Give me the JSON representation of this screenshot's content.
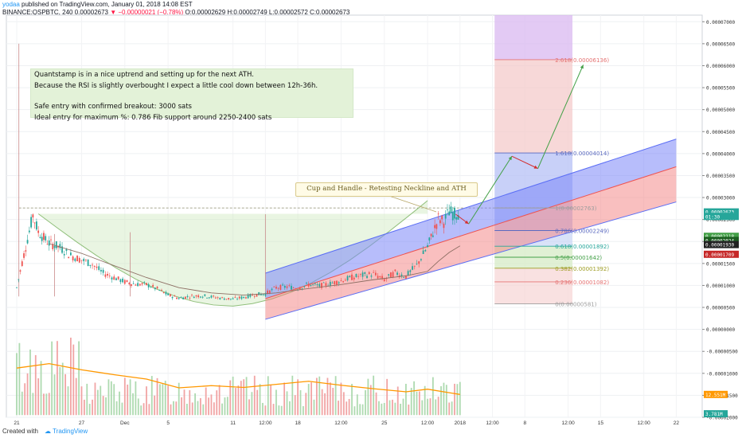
{
  "header": {
    "author": "yodaa",
    "published": "published on TradingView.com, January 01, 2018 14:08 EST",
    "ticker": "BINANCE:QSPBTC, 240",
    "last": "0.00002673",
    "change": "▼ −0.00000021 (−0.78%)",
    "ohlc": "O:0.00002629 H:0.00002749 L:0.00002572 C:0.00002673"
  },
  "notes": {
    "line1": "Quantstamp is in a nice uptrend and setting up for the next ATH.",
    "line2": "Because the RSI is slightly overbought I expect a little cool down between 12h-36h.",
    "line3": "Safe entry with confirmed breakout: 3000 sats",
    "line4": "Ideal entry for maximum %: 0.786 Fib support around 2250-2400 sats"
  },
  "callout": "Cup and Handle - Retesting Neckline and ATH",
  "footer": {
    "created_with": "Created with",
    "brand": "TradingView"
  },
  "colors": {
    "up": "#26a69a",
    "down": "#ef5350",
    "ma": "#ff9800",
    "channel_blue": "#5b6ef5",
    "channel_red": "#ef5350",
    "cup": "#cfe8bf",
    "arrow_green": "#43a047",
    "arrow_red": "#d32f2f"
  },
  "chart_data": {
    "type": "line",
    "symbol": "BINANCE:QSPBTC",
    "interval": "240",
    "y_axis": {
      "ticks": [
        "0.00007000",
        "0.00006500",
        "0.00006000",
        "0.00005500",
        "0.00005000",
        "0.00004500",
        "0.00004000",
        "0.00003500",
        "0.00003000",
        "0.00002500",
        "0.00002000",
        "0.00001500",
        "0.00001000",
        "0.00000500",
        "0.00000000",
        "-0.00000500",
        "-0.00001000",
        "-0.00001500",
        "-0.00002000"
      ],
      "values": [
        7e-05,
        6.5e-05,
        6e-05,
        5.5e-05,
        5e-05,
        4.5e-05,
        4e-05,
        3.5e-05,
        3e-05,
        2.5e-05,
        2e-05,
        1.5e-05,
        1e-05,
        5e-06,
        0,
        -5e-06,
        -1e-05,
        -1.5e-05,
        -2e-05
      ],
      "range": [
        -2e-05,
        7.15e-05
      ]
    },
    "x_axis": {
      "ticks": [
        "21",
        "27",
        "Dec",
        "5",
        "11",
        "12:00",
        "18",
        "12:00",
        "25",
        "12:00",
        "2018",
        "12:00",
        "8",
        "12:00",
        "15",
        "12:00",
        "22"
      ],
      "positions_days": [
        0,
        6,
        10,
        14,
        20,
        23,
        26,
        30,
        34,
        38,
        41,
        44,
        47,
        51,
        54,
        58,
        61
      ]
    },
    "price_labels": [
      {
        "text": "0.00002673",
        "value": 2.673e-05,
        "color": "#26a69a"
      },
      {
        "text": "01:30",
        "value": 2.57e-05,
        "color": "#26a69a"
      },
      {
        "text": "0.00002118",
        "value": 2.118e-05,
        "color": "#43a047"
      },
      {
        "text": "0.00002024",
        "value": 2.024e-05,
        "color": "#1b5e20"
      },
      {
        "text": "0.00001930",
        "value": 1.93e-05,
        "color": "#212121"
      },
      {
        "text": "0.00001709",
        "value": 1.709e-05,
        "color": "#c62828"
      }
    ],
    "fibonacci": [
      {
        "level": "2.618",
        "text": "2.618(0.00006136)",
        "value": 6.136e-05,
        "color": "#e57373"
      },
      {
        "level": "1.618",
        "text": "1.618(0.00004014)",
        "value": 4.014e-05,
        "color": "#5c6bc0"
      },
      {
        "level": "1",
        "text": "1(0.00002763)",
        "value": 2.763e-05,
        "color": "#9e9e9e"
      },
      {
        "level": "0.786",
        "text": "0.786(0.00002249)",
        "value": 2.249e-05,
        "color": "#5c6bc0"
      },
      {
        "level": "0.618",
        "text": "0.618(0.00001892)",
        "value": 1.892e-05,
        "color": "#26a69a"
      },
      {
        "level": "0.5",
        "text": "0.5(0.00001642)",
        "value": 1.642e-05,
        "color": "#43a047"
      },
      {
        "level": "0.382",
        "text": "0.382(0.00001392)",
        "value": 1.392e-05,
        "color": "#9e9d24"
      },
      {
        "level": "0.236",
        "text": "0.236(0.00001082)",
        "value": 1.082e-05,
        "color": "#e57373"
      },
      {
        "level": "0",
        "text": "0(0.00000581)",
        "value": 5.81e-06,
        "color": "#9e9e9e"
      }
    ],
    "price_series": {
      "name": "QSPBTC",
      "x_days": [
        0,
        0.5,
        1,
        1.5,
        2,
        2.5,
        3,
        3.5,
        4,
        5,
        6,
        7,
        8,
        9,
        10,
        11,
        12,
        13,
        14,
        15,
        16,
        17,
        18,
        19,
        20,
        21,
        22,
        23,
        24,
        25,
        26,
        27,
        28,
        29,
        30,
        31,
        32,
        33,
        34,
        35,
        36,
        37,
        38,
        38.5,
        39,
        39.5,
        40,
        40.5,
        41
      ],
      "values": [
        9.5e-06,
        1.52e-05,
        2.05e-05,
        2.6e-05,
        2.22e-05,
        2.08e-05,
        1.96e-05,
        1.92e-05,
        1.86e-05,
        1.68e-05,
        1.58e-05,
        1.48e-05,
        1.28e-05,
        1.18e-05,
        1.08e-05,
        1.03e-05,
        1.02e-05,
        9.2e-06,
        7.8e-06,
        7.1e-06,
        7.5e-06,
        7.7e-06,
        7.4e-06,
        7.1e-06,
        6.9e-06,
        7.3e-06,
        7.9e-06,
        8.1e-06,
        9.5e-06,
        9.7e-06,
        9.4e-06,
        1.02e-05,
        9.9e-06,
        1.04e-05,
        1.11e-05,
        1.18e-05,
        1.23e-05,
        1.26e-05,
        1.13e-05,
        1.29e-05,
        1.21e-05,
        1.46e-05,
        1.88e-05,
        2.2e-05,
        2.52e-05,
        2.45e-05,
        2.68e-05,
        2.62e-05,
        2.67e-05
      ]
    },
    "moving_average": {
      "x_days": [
        3,
        6,
        9,
        12,
        15,
        18,
        21,
        24,
        27,
        30,
        33,
        36,
        38,
        39,
        40,
        41
      ],
      "values": [
        1.95e-05,
        1.73e-05,
        1.45e-05,
        1.18e-05,
        9.5e-06,
        8.3e-06,
        7.8e-06,
        8.3e-06,
        9.3e-06,
        1.02e-05,
        1.13e-05,
        1.22e-05,
        1.32e-05,
        1.55e-05,
        1.75e-05,
        1.9e-05
      ]
    },
    "volume_ma": {
      "x_days": [
        0,
        3,
        6,
        9,
        12,
        15,
        18,
        21,
        24,
        27,
        30,
        33,
        36,
        38,
        40,
        41
      ],
      "values": [
        -8.8e-06,
        -7.8e-06,
        -9.2e-06,
        -1.03e-05,
        -1.13e-05,
        -1.33e-05,
        -1.28e-05,
        -1.32e-05,
        -1.25e-05,
        -1.18e-05,
        -1.27e-05,
        -1.35e-05,
        -1.42e-05,
        -1.36e-05,
        -1.44e-05,
        -1.48e-05
      ]
    },
    "volume_labels": [
      {
        "text": "12.551M",
        "color": "#ff9800"
      },
      {
        "text": "3.781M",
        "color": "#26a69a"
      }
    ],
    "channel": {
      "blue_top": {
        "x_days": [
          23,
          61
        ],
        "values": [
          1.28e-05,
          4.33e-05
        ]
      },
      "blue_bottom": {
        "x_days": [
          23,
          61
        ],
        "values": [
          2.3e-06,
          2.9e-05
        ]
      },
      "red_top": {
        "x_days": [
          23,
          61
        ],
        "values": [
          7e-06,
          3.7e-05
        ]
      }
    }
  }
}
